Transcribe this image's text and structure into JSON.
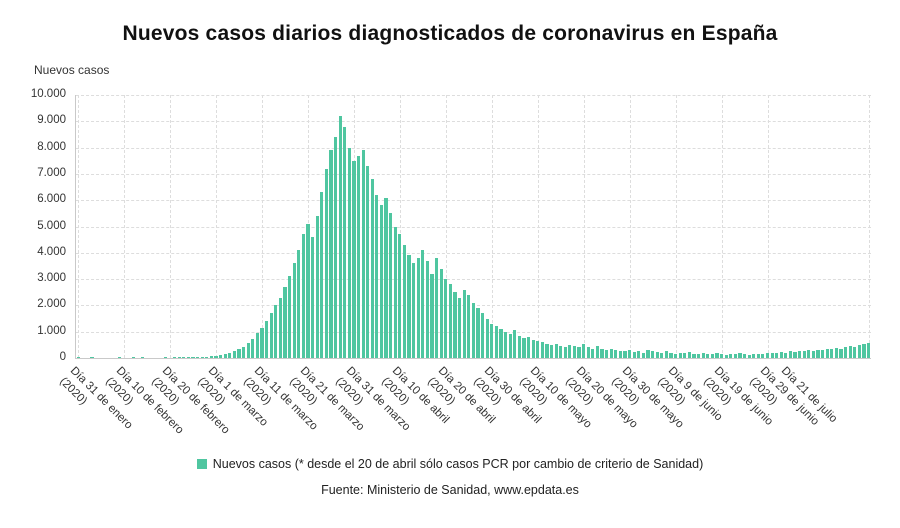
{
  "header": {
    "title": "Nuevos casos diarios diagnosticados de coronavirus en España"
  },
  "axes": {
    "y_title": "Nuevos casos"
  },
  "legend": {
    "label": "Nuevos casos (* desde el 20 de abril sólo casos PCR por cambio de criterio de Sanidad)"
  },
  "footer": {
    "source": "Fuente: Ministerio de Sanidad, www.epdata.es"
  },
  "colors": {
    "bar": "#4fc6a0",
    "grid": "#dddddd",
    "axis": "#c9c9c9",
    "text": "#333333"
  },
  "chart_data": {
    "type": "bar",
    "title": "Nuevos casos diarios diagnosticados de coronavirus en España",
    "xlabel": "",
    "ylabel": "Nuevos casos",
    "ylim": [
      0,
      10000
    ],
    "grid": "dashed",
    "legend_position": "bottom",
    "y_ticks": [
      "0",
      "1.000",
      "2.000",
      "3.000",
      "4.000",
      "5.000",
      "6.000",
      "7.000",
      "8.000",
      "9.000",
      "10.000"
    ],
    "x_tick_labels": [
      {
        "index": 0,
        "line1": "Día 31 de enero",
        "line2": "(2020)"
      },
      {
        "index": 10,
        "line1": "Día 10 de febrero",
        "line2": "(2020)"
      },
      {
        "index": 20,
        "line1": "Día 20 de febrero",
        "line2": "(2020)"
      },
      {
        "index": 30,
        "line1": "Día 1 de marzo",
        "line2": "(2020)"
      },
      {
        "index": 40,
        "line1": "Día 11 de marzo",
        "line2": "(2020)"
      },
      {
        "index": 50,
        "line1": "Día 21 de marzo",
        "line2": "(2020)"
      },
      {
        "index": 60,
        "line1": "Día 31 de marzo",
        "line2": "(2020)"
      },
      {
        "index": 70,
        "line1": "Día 10 de abril",
        "line2": "(2020)"
      },
      {
        "index": 80,
        "line1": "Día 20 de abril",
        "line2": "(2020)"
      },
      {
        "index": 90,
        "line1": "Día 30 de abril",
        "line2": "(2020)"
      },
      {
        "index": 100,
        "line1": "Día 10 de mayo",
        "line2": "(2020)"
      },
      {
        "index": 110,
        "line1": "Día 20 de mayo",
        "line2": "(2020)"
      },
      {
        "index": 120,
        "line1": "Día 30 de mayo",
        "line2": "(2020)"
      },
      {
        "index": 130,
        "line1": "Día 9 de junio",
        "line2": "(2020)"
      },
      {
        "index": 140,
        "line1": "Día 19 de junio",
        "line2": "(2020)"
      },
      {
        "index": 150,
        "line1": "Día 29 de junio",
        "line2": "(2020)"
      },
      {
        "index": 172,
        "line1": "Día 21 de julio",
        "line2": ""
      }
    ],
    "series": [
      {
        "name": "Nuevos casos",
        "values": [
          1,
          0,
          0,
          1,
          0,
          0,
          0,
          0,
          0,
          1,
          0,
          0,
          1,
          0,
          1,
          0,
          0,
          0,
          0,
          1,
          0,
          1,
          2,
          3,
          8,
          14,
          20,
          30,
          45,
          70,
          90,
          120,
          150,
          200,
          260,
          340,
          430,
          560,
          720,
          950,
          1150,
          1400,
          1700,
          2000,
          2300,
          2700,
          3100,
          3600,
          4100,
          4700,
          5100,
          4600,
          5400,
          6300,
          7200,
          7900,
          8400,
          9200,
          8800,
          8000,
          7500,
          7700,
          7900,
          7300,
          6800,
          6200,
          5800,
          6100,
          5500,
          5000,
          4700,
          4300,
          3900,
          3600,
          3800,
          4100,
          3700,
          3200,
          3800,
          3400,
          3000,
          2800,
          2500,
          2300,
          2600,
          2400,
          2100,
          1900,
          1700,
          1500,
          1300,
          1200,
          1100,
          1000,
          900,
          1050,
          850,
          750,
          800,
          700,
          650,
          600,
          550,
          500,
          550,
          450,
          400,
          500,
          450,
          400,
          550,
          400,
          350,
          450,
          350,
          300,
          350,
          300,
          280,
          250,
          300,
          230,
          250,
          200,
          300,
          250,
          220,
          180,
          250,
          200,
          150,
          200,
          180,
          220,
          150,
          170,
          200,
          160,
          140,
          180,
          150,
          130,
          160,
          140,
          180,
          150,
          130,
          170,
          140,
          160,
          180,
          200,
          180,
          220,
          200,
          250,
          230,
          270,
          250,
          300,
          280,
          320,
          300,
          350,
          330,
          380,
          360,
          400,
          450,
          420,
          500,
          550,
          580
        ]
      }
    ]
  }
}
